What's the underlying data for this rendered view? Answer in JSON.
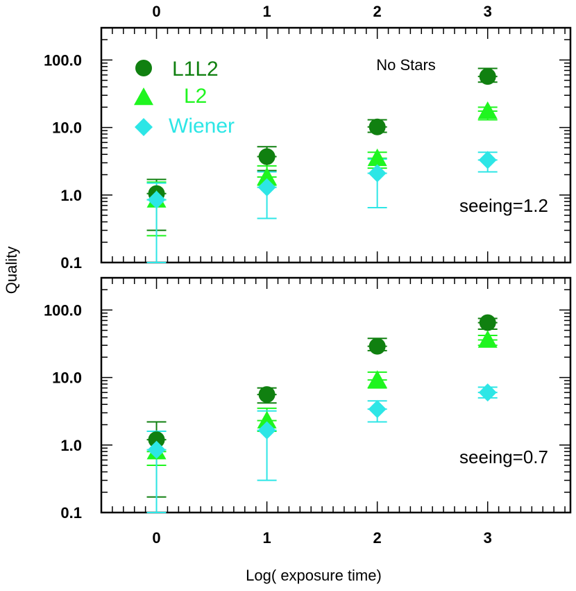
{
  "chart_data": {
    "type": "scatter",
    "xlabel": "Log( exposure time)",
    "ylabel": "Quality",
    "x_ticks": [
      "0",
      "1",
      "2",
      "3"
    ],
    "y_ticks": [
      "0.1",
      "1.0",
      "10.0",
      "100.0"
    ],
    "xlim": [
      -0.5,
      3.75
    ],
    "ylim": [
      0.1,
      300
    ],
    "yscale": "log",
    "legend": {
      "position": "top-left",
      "entries": [
        {
          "label": "L1L2",
          "marker": "circle",
          "color": "#108010"
        },
        {
          "label": "L2",
          "marker": "triangle",
          "color": "#1FF51F"
        },
        {
          "label": "Wiener",
          "marker": "diamond",
          "color": "#2DE6E6"
        }
      ]
    },
    "panels": [
      {
        "name": "top",
        "annotation": "seeing=1.2",
        "note": "No Stars",
        "series": [
          {
            "name": "L1L2",
            "color": "#108010",
            "marker": "circle",
            "x": [
              0,
              1,
              2,
              3
            ],
            "y": [
              1.05,
              3.7,
              10.2,
              57
            ],
            "err_low": [
              0.3,
              2.3,
              8.5,
              47
            ],
            "err_high": [
              1.7,
              5.2,
              13.0,
              75
            ]
          },
          {
            "name": "L2",
            "color": "#1FF51F",
            "marker": "triangle",
            "x": [
              0,
              1,
              2,
              3
            ],
            "y": [
              0.85,
              1.85,
              3.5,
              17.5
            ],
            "err_low": [
              0.25,
              1.4,
              2.5,
              13
            ],
            "err_high": [
              1.55,
              2.7,
              4.3,
              20
            ]
          },
          {
            "name": "Wiener",
            "color": "#2DE6E6",
            "marker": "diamond",
            "x": [
              0,
              1,
              2,
              3
            ],
            "y": [
              0.85,
              1.3,
              2.1,
              3.3
            ],
            "err_low": [
              0.1,
              0.45,
              0.65,
              2.2
            ],
            "err_high": [
              1.5,
              2.2,
              3.4,
              4.3
            ]
          }
        ]
      },
      {
        "name": "bottom",
        "annotation": "seeing=0.7",
        "note": "",
        "series": [
          {
            "name": "L1L2",
            "color": "#108010",
            "marker": "circle",
            "x": [
              0,
              1,
              2,
              3
            ],
            "y": [
              1.2,
              5.6,
              29,
              65
            ],
            "err_low": [
              0.17,
              4.2,
              25,
              52
            ],
            "err_high": [
              2.2,
              7.0,
              38,
              75
            ]
          },
          {
            "name": "L2",
            "color": "#1FF51F",
            "marker": "triangle",
            "x": [
              0,
              1,
              2,
              3
            ],
            "y": [
              0.8,
              2.3,
              9.2,
              36
            ],
            "err_low": [
              0.5,
              1.6,
              7.0,
              30
            ],
            "err_high": [
              1.6,
              3.5,
              12,
              42
            ]
          },
          {
            "name": "Wiener",
            "color": "#2DE6E6",
            "marker": "diamond",
            "x": [
              0,
              1,
              2,
              3
            ],
            "y": [
              0.85,
              1.65,
              3.4,
              6.0
            ],
            "err_low": [
              0.1,
              0.3,
              2.2,
              5.0
            ],
            "err_high": [
              1.6,
              3.2,
              4.5,
              7.2
            ]
          }
        ]
      }
    ]
  }
}
